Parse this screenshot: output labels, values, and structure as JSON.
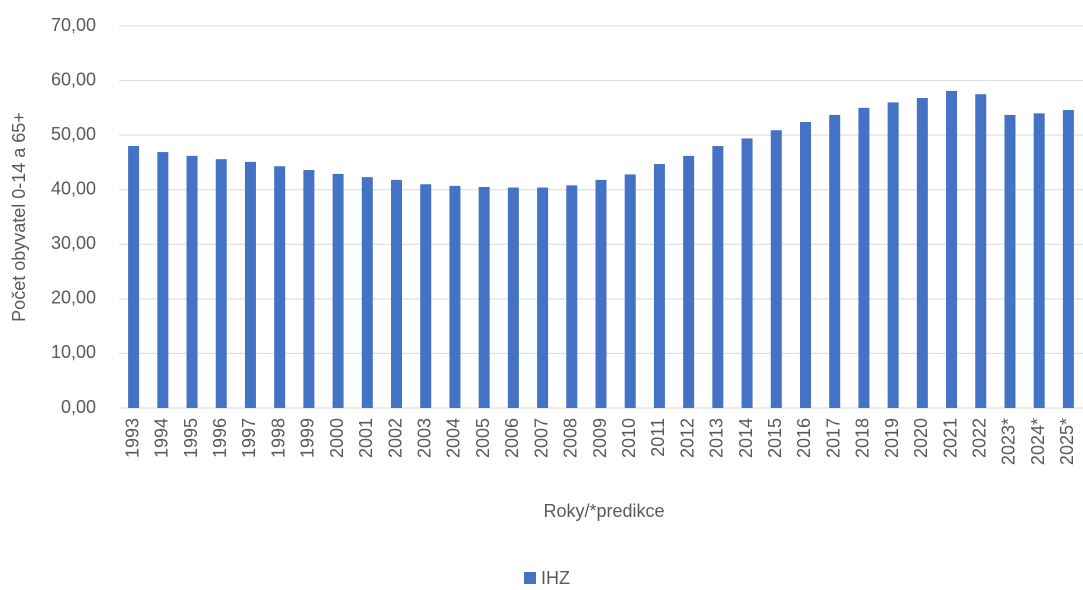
{
  "chart_data": {
    "type": "bar",
    "y_label": "Počet obyvatel 0-14 a 65+",
    "x_label": "Roky/*predikce",
    "categories": [
      "1993",
      "1994",
      "1995",
      "1996",
      "1997",
      "1998",
      "1999",
      "2000",
      "2001",
      "2002",
      "2003",
      "2004",
      "2005",
      "2006",
      "2007",
      "2008",
      "2009",
      "2010",
      "2011",
      "2012",
      "2013",
      "2014",
      "2015",
      "2016",
      "2017",
      "2018",
      "2019",
      "2020",
      "2021",
      "2022",
      "2023*",
      "2024*",
      "2025*"
    ],
    "series": [
      {
        "name": "IHZ",
        "color": "#4472c4",
        "values": [
          48.0,
          46.9,
          46.2,
          45.6,
          45.1,
          44.3,
          43.6,
          42.9,
          42.3,
          41.8,
          41.0,
          40.7,
          40.5,
          40.4,
          40.4,
          40.8,
          41.8,
          42.8,
          44.7,
          46.2,
          48.0,
          49.4,
          50.9,
          52.4,
          53.7,
          55.0,
          56.0,
          56.8,
          58.1,
          57.5,
          53.7,
          54.0,
          54.6
        ]
      }
    ],
    "ylim": [
      0,
      70
    ],
    "yticks": [
      {
        "value": 0,
        "label": "0,00"
      },
      {
        "value": 10,
        "label": "10,00"
      },
      {
        "value": 20,
        "label": "20,00"
      },
      {
        "value": 30,
        "label": "30,00"
      },
      {
        "value": 40,
        "label": "40,00"
      },
      {
        "value": 50,
        "label": "50,00"
      },
      {
        "value": 60,
        "label": "60,00"
      },
      {
        "value": 70,
        "label": "70,00"
      }
    ],
    "grid": true,
    "legend": "bottom"
  }
}
